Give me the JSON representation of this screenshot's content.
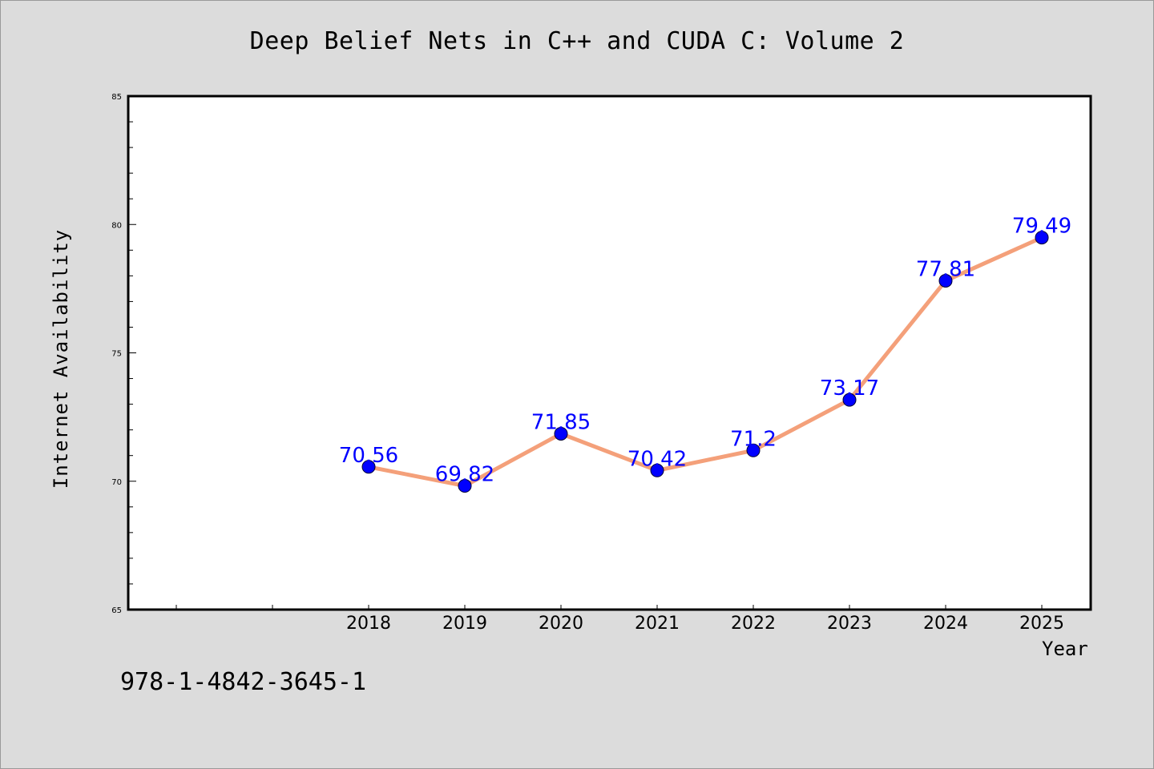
{
  "chart_data": {
    "type": "line",
    "title": "Deep Belief Nets in C++ and CUDA C: Volume 2",
    "xlabel": "Year",
    "ylabel": "Internet Availability",
    "x": [
      "2018",
      "2019",
      "2020",
      "2021",
      "2022",
      "2023",
      "2024",
      "2025"
    ],
    "series": [
      {
        "values": [
          70.56,
          69.82,
          71.85,
          70.42,
          71.2,
          73.17,
          77.81,
          79.49
        ],
        "data_labels": [
          "70.56",
          "69.82",
          "71.85",
          "70.42",
          "71.2",
          "73.17",
          "77.81",
          "79.49"
        ],
        "line_color": "#f4a07a",
        "marker_color": "#0000ff"
      }
    ],
    "ylim": [
      65,
      85
    ],
    "y_ticks": [
      "65",
      "70",
      "75",
      "80",
      "85"
    ],
    "grid": false,
    "label_color": "#0000ff"
  },
  "footer_code": "978-1-4842-3645-1",
  "colors": {
    "background": "#dcdcdc",
    "plot_background": "#ffffff"
  }
}
